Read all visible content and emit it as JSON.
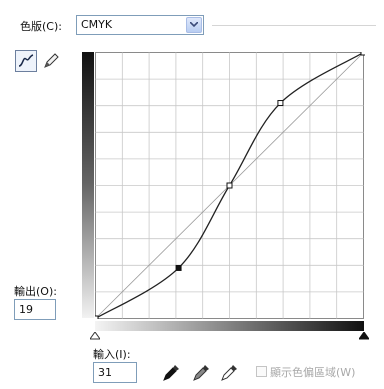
{
  "channel": {
    "label": "色版(C):",
    "value": "CMYK"
  },
  "tools": {
    "curve": "curve-tool-icon",
    "pencil": "pencil-icon"
  },
  "output": {
    "label": "輸出(O):",
    "value": "19"
  },
  "input": {
    "label": "輸入(I):",
    "value": "31"
  },
  "eyedroppers": [
    "black-point-eyedropper-icon",
    "gray-point-eyedropper-icon",
    "white-point-eyedropper-icon"
  ],
  "clipping": {
    "label": "顯示色偏區域(W)",
    "checked": false,
    "enabled": false
  },
  "curve": {
    "points": [
      [
        0,
        0
      ],
      [
        31,
        19
      ],
      [
        50,
        50
      ],
      [
        69,
        81
      ],
      [
        100,
        100
      ]
    ],
    "selected_index": 1
  },
  "colors": {
    "grid": "#c8c8c8",
    "curve": "#222222",
    "baseline": "#9a9a9a"
  }
}
